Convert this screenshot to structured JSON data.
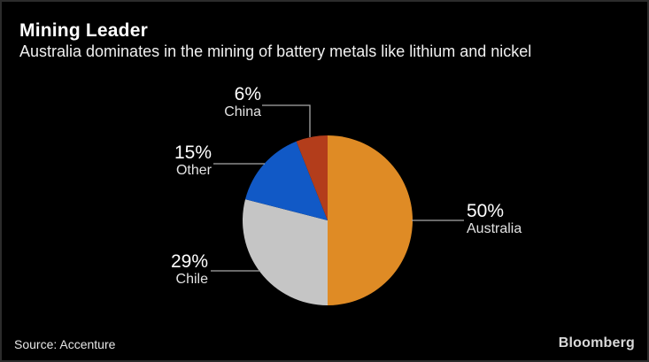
{
  "header": {
    "title": "Mining Leader",
    "subtitle": "Australia dominates in the mining of battery metals like lithium and nickel"
  },
  "chart_data": {
    "type": "pie",
    "title": "Mining Leader",
    "subtitle": "Australia dominates in the mining of battery metals like lithium and nickel",
    "start": "top",
    "direction": "clockwise",
    "units": "percent",
    "slices": [
      {
        "label": "Australia",
        "value": 50,
        "pct_text": "50%",
        "color": "#DF8B25"
      },
      {
        "label": "Chile",
        "value": 29,
        "pct_text": "29%",
        "color": "#C5C5C5"
      },
      {
        "label": "Other",
        "value": 15,
        "pct_text": "15%",
        "color": "#1159C6"
      },
      {
        "label": "China",
        "value": 6,
        "pct_text": "6%",
        "color": "#B33D1B"
      }
    ],
    "callout_line_color": "#a8a8a8"
  },
  "footer": {
    "source": "Source: Accenture",
    "brand": "Bloomberg"
  }
}
